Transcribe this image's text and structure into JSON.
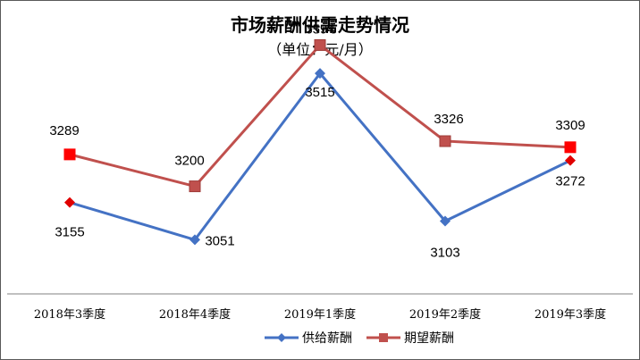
{
  "chart_data": {
    "type": "line",
    "title": "市场薪酬供需走势情况",
    "subtitle": "（单位：元/月）",
    "categories": [
      "2018年3季度",
      "2018年4季度",
      "2019年1季度",
      "2019年2季度",
      "2019年3季度"
    ],
    "series": [
      {
        "name": "供给薪酬",
        "values": [
          3155,
          3051,
          3515,
          3103,
          3272
        ],
        "color": "#4472C4",
        "marker": "diamond",
        "highlight_color": "#E00000"
      },
      {
        "name": "期望薪酬",
        "values": [
          3289,
          3200,
          3594,
          3326,
          3309
        ],
        "color": "#C0504D",
        "marker": "square",
        "highlight_color": "#FF0000"
      }
    ],
    "ylim": [
      2900,
      3620
    ],
    "grid": false,
    "legend": "bottom"
  }
}
